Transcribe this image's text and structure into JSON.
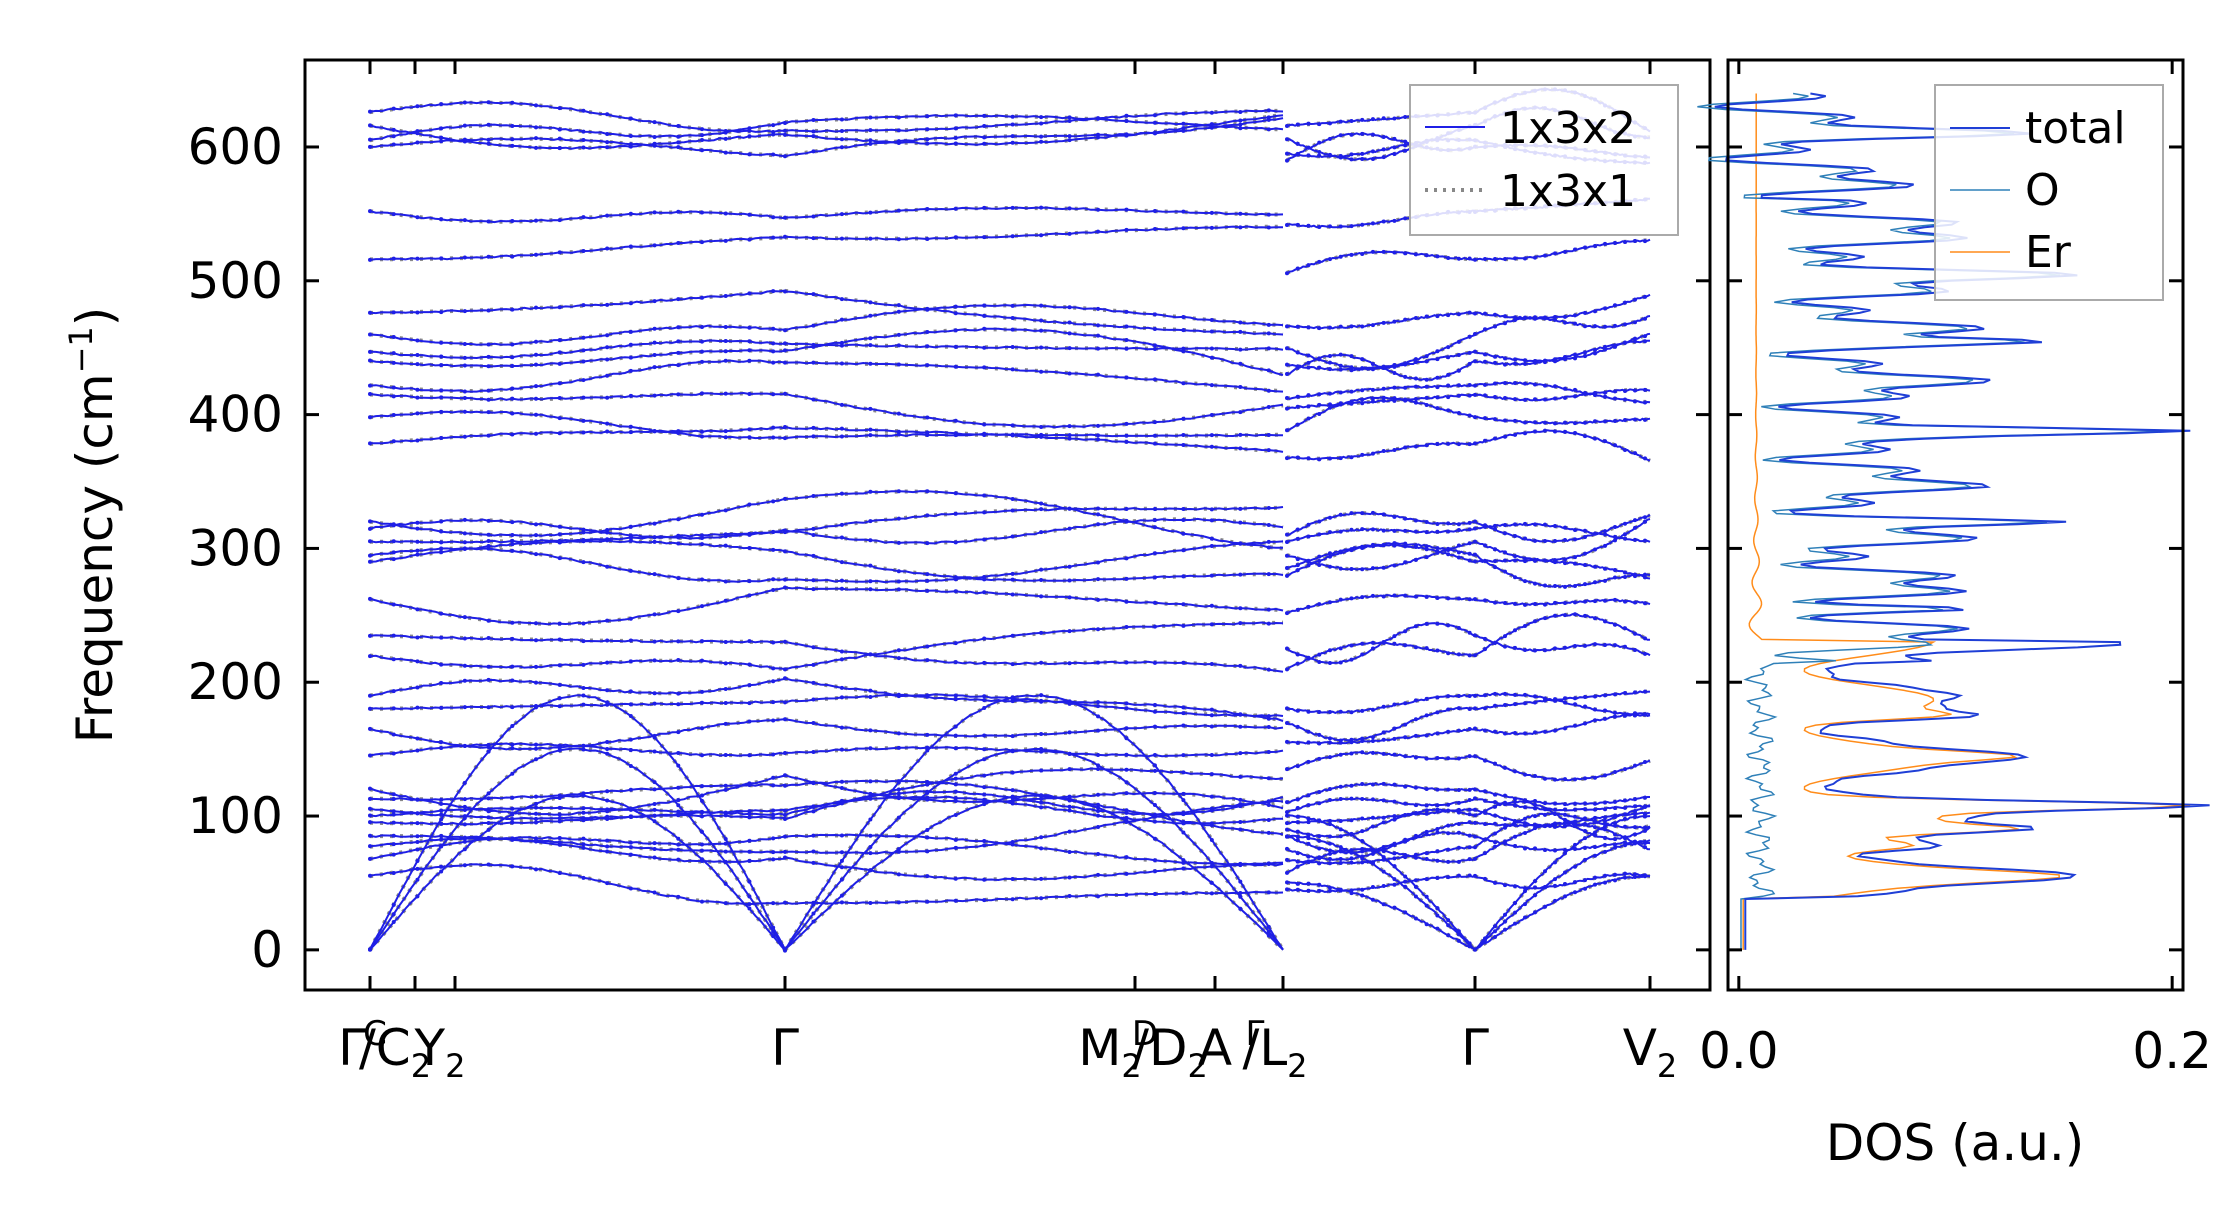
{
  "chart_data": [
    {
      "type": "line",
      "ylabel": "Frequency (cm⁻¹)",
      "ylabel_main": "Frequency (cm",
      "ylabel_sup": "−1",
      "ylabel_close": ")",
      "ylim": [
        -30,
        665
      ],
      "yticks": [
        0,
        100,
        200,
        300,
        400,
        500,
        600
      ],
      "xticks": [
        {
          "label": "Γ",
          "sub": ""
        },
        {
          "label": "C",
          "sub": ""
        },
        {
          "label": "/C",
          "sub": "2"
        },
        {
          "label": "Y",
          "sub": "2"
        },
        {
          "label": "Γ",
          "sub": ""
        },
        {
          "label": "M",
          "sub": "2"
        },
        {
          "label": "D",
          "sub": ""
        },
        {
          "label": "/D",
          "sub": "2"
        },
        {
          "label": "A",
          "sub": ""
        },
        {
          "label": "Γ",
          "sub": ""
        },
        {
          "label": "/L",
          "sub": "2"
        },
        {
          "label": "Γ",
          "sub": ""
        },
        {
          "label": "V",
          "sub": "2"
        }
      ],
      "legend": {
        "placement": "top-right",
        "entries": [
          "1x3x2",
          "1x3x1"
        ]
      },
      "series": [
        {
          "name": "1x3x2",
          "color": "#1f1fe6",
          "style": "solid"
        },
        {
          "name": "1x3x1",
          "color": "#888888",
          "style": "dotted"
        }
      ],
      "note_bands_start_freqs": [
        0,
        0,
        0,
        55,
        68,
        77,
        85,
        95,
        100,
        105,
        113,
        120,
        145,
        165,
        180,
        190,
        220,
        235,
        262,
        290,
        295,
        305,
        315,
        320,
        378,
        398,
        415,
        422,
        440,
        447,
        460,
        476,
        516,
        552,
        600,
        605,
        616,
        626
      ]
    },
    {
      "type": "line",
      "xlabel": "DOS (a.u.)",
      "xlim": [
        -0.005,
        0.205
      ],
      "xticks": [
        "0.0",
        "0.2"
      ],
      "legend": {
        "placement": "top-right",
        "entries": [
          "total",
          "O",
          "Er"
        ]
      },
      "series": [
        {
          "name": "total",
          "color": "#1f3fd6"
        },
        {
          "name": "O",
          "color": "#2f80b8"
        },
        {
          "name": "Er",
          "color": "#ff8c1a"
        }
      ]
    }
  ]
}
